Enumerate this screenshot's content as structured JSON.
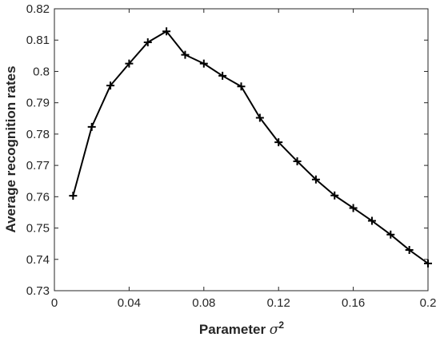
{
  "chart_data": {
    "type": "line",
    "xlabel": "Parameter σ",
    "xlabel_superscript": "2",
    "ylabel": "Average recognition rates",
    "xlim": [
      0,
      0.2
    ],
    "ylim": [
      0.73,
      0.82
    ],
    "x_ticks": [
      "0",
      "0.04",
      "0.08",
      "0.12",
      "0.16",
      "0.2"
    ],
    "y_ticks": [
      "0.73",
      "0.74",
      "0.75",
      "0.76",
      "0.77",
      "0.78",
      "0.79",
      "0.8",
      "0.81",
      "0.82"
    ],
    "grid": false,
    "marker": "+",
    "line_color": "#000000",
    "series": [
      {
        "x": [
          0.01,
          0.02,
          0.03,
          0.04,
          0.05,
          0.06,
          0.07,
          0.08,
          0.09,
          0.1,
          0.11,
          0.12,
          0.13,
          0.14,
          0.15,
          0.16,
          0.17,
          0.18,
          0.19,
          0.2
        ],
        "values": [
          0.7603,
          0.7823,
          0.7955,
          0.8025,
          0.8093,
          0.8128,
          0.8053,
          0.8025,
          0.7986,
          0.7952,
          0.7852,
          0.7774,
          0.7713,
          0.7655,
          0.7604,
          0.7564,
          0.7523,
          0.7479,
          0.743,
          0.7387
        ]
      }
    ]
  }
}
